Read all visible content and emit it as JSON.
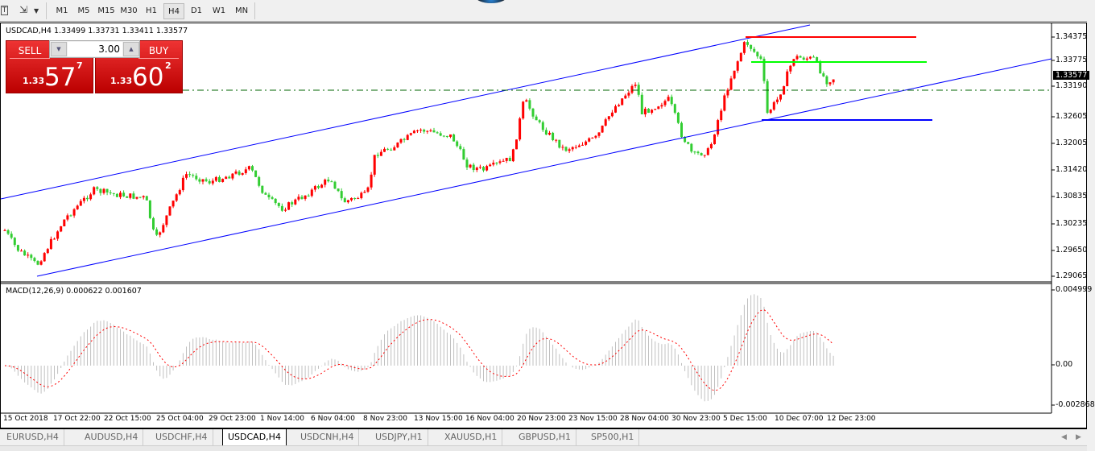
{
  "toolbar": {
    "timeframes": [
      "M1",
      "M5",
      "M15",
      "M30",
      "H1",
      "H4",
      "D1",
      "W1",
      "MN"
    ],
    "selected": "H4",
    "icons": [
      "text-tool-icon",
      "line-tools-icon",
      "dropdown-icon"
    ]
  },
  "chart": {
    "symbol_line": "USDCAD,H4  1.33499 1.33731 1.33411 1.33577",
    "trade_panel": {
      "sell_label": "SELL",
      "buy_label": "BUY",
      "lot": "3.00",
      "sell_prefix": "1.33",
      "sell_big": "57",
      "sell_sup": "7",
      "buy_prefix": "1.33",
      "buy_big": "60",
      "buy_sup": "2"
    },
    "price_axis": [
      "1.34375",
      "1.33775",
      "1.33190",
      "1.32605",
      "1.32005",
      "1.31420",
      "1.30835",
      "1.30235",
      "1.29650",
      "1.29065"
    ],
    "current_price": "1.33577",
    "time_axis": [
      "15 Oct 2018",
      "17 Oct 22:00",
      "22 Oct 15:00",
      "25 Oct 04:00",
      "29 Oct 23:00",
      "1 Nov 14:00",
      "6 Nov 04:00",
      "8 Nov 23:00",
      "13 Nov 15:00",
      "16 Nov 04:00",
      "20 Nov 23:00",
      "23 Nov 15:00",
      "28 Nov 04:00",
      "30 Nov 23:00",
      "5 Dec 15:00",
      "10 Dec 07:00",
      "12 Dec 23:00"
    ],
    "macd_label": "MACD(12,26,9) 0.000622 0.001607",
    "macd_axis": [
      "0.004999",
      "0.00",
      "-0.002868"
    ],
    "colors": {
      "bull": "#ff0000",
      "bear": "#32cd32",
      "channel": "#0000ff",
      "resistance": "#ff0000",
      "mid_level": "#00ff00",
      "support": "#0000ff",
      "hline": "#006400",
      "macd_hist": "#c0c0c0",
      "macd_signal": "#ff0000"
    }
  },
  "tabs": [
    "EURUSD,H4",
    "AUDUSD,H4",
    "USDCHF,H4",
    "USDCAD,H4",
    "USDCNH,H4",
    "USDJPY,H1",
    "XAUUSD,H1",
    "GBPUSD,H1",
    "SP500,H1"
  ],
  "active_tab": "USDCAD,H4"
}
